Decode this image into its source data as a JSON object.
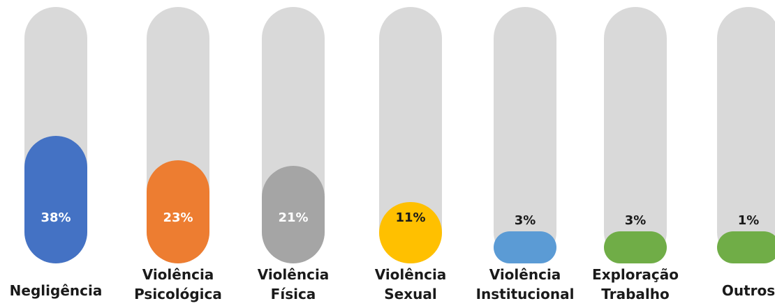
{
  "chart_data": {
    "type": "bar",
    "title": "",
    "xlabel": "",
    "ylabel": "",
    "ylim": [
      0,
      100
    ],
    "grid": false,
    "legend": "none",
    "categories": [
      [
        "Negligência"
      ],
      [
        "Violência",
        "Psicológica"
      ],
      [
        "Violência",
        "Física"
      ],
      [
        "Violência",
        "Sexual"
      ],
      [
        "Violência",
        "Institucional"
      ],
      [
        "Exploração",
        "Trabalho"
      ],
      [
        "Outros"
      ]
    ],
    "values": [
      38,
      23,
      21,
      11,
      3,
      3,
      1
    ],
    "data_labels": [
      "38%",
      "23%",
      "21%",
      "11%",
      "3%",
      "3%",
      "1%"
    ],
    "colors": [
      "#4472C4",
      "#ED7D31",
      "#A5A5A5",
      "#FFC000",
      "#5B9BD5",
      "#70AD47",
      "#70AD47"
    ],
    "label_colors": [
      "#ffffff",
      "#ffffff",
      "#ffffff",
      "#1a1a1a",
      "#1a1a1a",
      "#1a1a1a",
      "#1a1a1a"
    ],
    "track_color": "#D9D9D9"
  }
}
